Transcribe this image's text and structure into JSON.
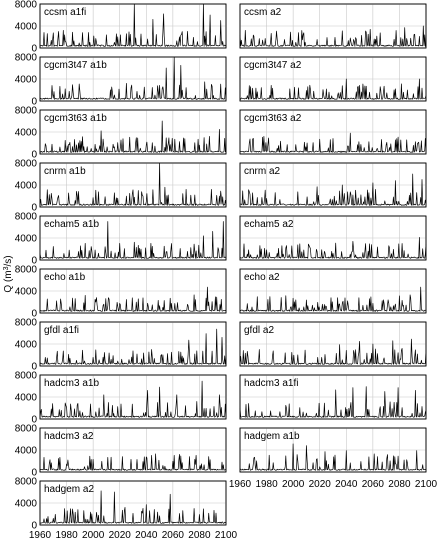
{
  "chart_data": {
    "type": "line",
    "ylabel_main": "Q (m",
    "ylabel_sup": "3",
    "ylabel_tail": "/s)",
    "xlim": [
      1960,
      2100
    ],
    "ylim": [
      0,
      8000
    ],
    "xticks": [
      1960,
      1980,
      2000,
      2020,
      2040,
      2060,
      2080,
      2100
    ],
    "yticks": [
      0,
      4000,
      8000
    ],
    "grid": true,
    "panels": [
      {
        "title": "ccsm a1fi",
        "peaks": [
          [
            2031,
            8000
          ],
          [
            2045,
            5200
          ],
          [
            2053,
            6200
          ],
          [
            2083,
            8100
          ],
          [
            2088,
            6000
          ],
          [
            2096,
            5000
          ]
        ]
      },
      {
        "title": "ccsm a2",
        "peaks": [
          [
            2004,
            2800
          ],
          [
            2037,
            3100
          ],
          [
            2058,
            3400
          ],
          [
            2084,
            3700
          ],
          [
            2098,
            4000
          ]
        ]
      },
      {
        "title": "cgcm3t47 a1b",
        "peaks": [
          [
            2025,
            3200
          ],
          [
            2055,
            6000
          ],
          [
            2061,
            7900
          ],
          [
            2066,
            6500
          ],
          [
            2084,
            3500
          ]
        ]
      },
      {
        "title": "cgcm3t47 a2",
        "peaks": [
          [
            2011,
            2600
          ],
          [
            2040,
            4000
          ],
          [
            2055,
            2700
          ],
          [
            2077,
            2200
          ],
          [
            2095,
            4000
          ]
        ]
      },
      {
        "title": "cgcm3t63 a1b",
        "peaks": [
          [
            2006,
            4200
          ],
          [
            2052,
            6000
          ],
          [
            2079,
            2700
          ],
          [
            2095,
            4500
          ]
        ]
      },
      {
        "title": "cgcm3t63 a2",
        "peaks": [
          [
            2020,
            2700
          ],
          [
            2043,
            3800
          ],
          [
            2078,
            2800
          ],
          [
            2094,
            2000
          ]
        ]
      },
      {
        "title": "cnrm a1b",
        "peaks": [
          [
            2034,
            3000
          ],
          [
            2050,
            8000
          ],
          [
            2054,
            3600
          ],
          [
            2070,
            3200
          ],
          [
            2089,
            3200
          ],
          [
            2096,
            2900
          ]
        ]
      },
      {
        "title": "cnrm a2",
        "peaks": [
          [
            2018,
            3700
          ],
          [
            2037,
            4000
          ],
          [
            2060,
            4400
          ],
          [
            2077,
            4800
          ],
          [
            2090,
            6000
          ],
          [
            2097,
            5000
          ]
        ]
      },
      {
        "title": "echam5 a1b",
        "peaks": [
          [
            2011,
            7000
          ],
          [
            2059,
            3000
          ],
          [
            2083,
            4400
          ],
          [
            2090,
            5200
          ],
          [
            2098,
            7000
          ]
        ]
      },
      {
        "title": "echam5 a2",
        "peaks": [
          [
            2012,
            2600
          ],
          [
            2045,
            3400
          ],
          [
            2059,
            2800
          ],
          [
            2082,
            3000
          ],
          [
            2095,
            4100
          ]
        ]
      },
      {
        "title": "echo a1b",
        "peaks": [
          [
            2049,
            2300
          ],
          [
            2076,
            3300
          ],
          [
            2086,
            4700
          ],
          [
            2093,
            2900
          ]
        ]
      },
      {
        "title": "echo a2",
        "peaks": [
          [
            2037,
            1800
          ],
          [
            2072,
            1700
          ],
          [
            2088,
            3300
          ],
          [
            2096,
            4700
          ]
        ]
      },
      {
        "title": "gfdl a1fi",
        "peaks": [
          [
            2044,
            3000
          ],
          [
            2072,
            4700
          ],
          [
            2085,
            5900
          ],
          [
            2093,
            6700
          ],
          [
            2097,
            5200
          ]
        ]
      },
      {
        "title": "gfdl a2",
        "peaks": [
          [
            2035,
            3900
          ],
          [
            2050,
            4500
          ],
          [
            2060,
            4000
          ],
          [
            2075,
            4600
          ],
          [
            2089,
            4900
          ]
        ]
      },
      {
        "title": "hadcm3 a1b",
        "peaks": [
          [
            2008,
            4400
          ],
          [
            2041,
            5200
          ],
          [
            2050,
            5800
          ],
          [
            2063,
            4400
          ],
          [
            2082,
            6900
          ],
          [
            2095,
            4400
          ]
        ]
      },
      {
        "title": "hadcm3 a1fi",
        "peaks": [
          [
            2032,
            5300
          ],
          [
            2045,
            5700
          ],
          [
            2055,
            5900
          ],
          [
            2069,
            5000
          ],
          [
            2079,
            5700
          ],
          [
            2092,
            5200
          ]
        ]
      },
      {
        "title": "hadcm3 a2",
        "peaks": [
          [
            2022,
            2800
          ],
          [
            2047,
            3300
          ],
          [
            2065,
            3200
          ],
          [
            2087,
            2800
          ]
        ]
      },
      {
        "title": "hadgem a1b",
        "peaks": [
          [
            2000,
            5100
          ],
          [
            2010,
            4800
          ],
          [
            2024,
            3700
          ],
          [
            2040,
            3900
          ],
          [
            2061,
            3300
          ],
          [
            2093,
            3900
          ]
        ]
      },
      {
        "title": "hadgem a2",
        "peaks": [
          [
            2006,
            6200
          ],
          [
            2016,
            6000
          ],
          [
            2024,
            3200
          ],
          [
            2040,
            3700
          ],
          [
            2058,
            5600
          ],
          [
            2076,
            3000
          ]
        ]
      }
    ]
  }
}
